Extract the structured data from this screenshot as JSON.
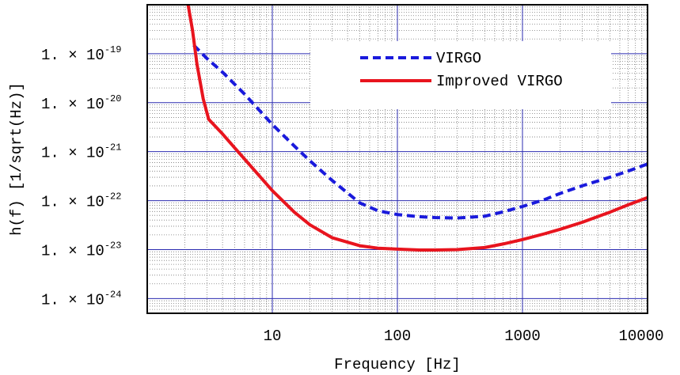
{
  "chart_data": {
    "type": "line",
    "xlabel": "Frequency [Hz]",
    "ylabel": "h(f) [1/sqrt(Hz)]",
    "xscale": "log",
    "yscale": "log",
    "xlim": [
      1,
      10000
    ],
    "ylim": [
      5e-25,
      1e-18
    ],
    "x_ticks": [
      {
        "value": 10,
        "label": "10"
      },
      {
        "value": 100,
        "label": "100"
      },
      {
        "value": 1000,
        "label": "1000"
      },
      {
        "value": 10000,
        "label": "10000"
      }
    ],
    "y_ticks": [
      {
        "value": 1e-24,
        "mantissa": "1.",
        "exp": "-24"
      },
      {
        "value": 1e-23,
        "mantissa": "1.",
        "exp": "-23"
      },
      {
        "value": 1e-22,
        "mantissa": "1.",
        "exp": "-22"
      },
      {
        "value": 1e-21,
        "mantissa": "1.",
        "exp": "-21"
      },
      {
        "value": 1e-20,
        "mantissa": "1.",
        "exp": "-20"
      },
      {
        "value": 1e-19,
        "mantissa": "1.",
        "exp": "-19"
      }
    ],
    "grid": true,
    "legend_position": "top-right",
    "series": [
      {
        "name": "VIRGO",
        "color": "#1a1adc",
        "style": "dashed",
        "x": [
          2.35,
          3,
          4,
          6,
          10,
          15,
          20,
          30,
          50,
          70,
          100,
          150,
          200,
          300,
          500,
          700,
          1000,
          1500,
          2000,
          3000,
          5000,
          7000,
          10000
        ],
        "y": [
          1.5e-19,
          8e-20,
          4.2e-20,
          1.5e-20,
          3.6e-21,
          1.3e-21,
          6.5e-22,
          2.6e-22,
          9e-23,
          6.2e-23,
          5.2e-23,
          4.7e-23,
          4.5e-23,
          4.4e-23,
          4.8e-23,
          5.9e-23,
          7.6e-23,
          1.05e-22,
          1.4e-22,
          2e-22,
          3e-22,
          4e-22,
          5.6e-22
        ]
      },
      {
        "name": "Improved VIRGO",
        "color": "#e8141e",
        "style": "solid",
        "x": [
          2.12,
          2.3,
          2.5,
          2.8,
          3.1,
          3.5,
          4,
          5,
          7,
          10,
          15,
          20,
          30,
          50,
          70,
          100,
          150,
          200,
          300,
          500,
          700,
          1000,
          1500,
          2000,
          3000,
          5000,
          7000,
          10000
        ],
        "y": [
          1e-18,
          3e-19,
          6e-20,
          1.2e-20,
          4.6e-21,
          3.3e-21,
          2.3e-21,
          1.2e-21,
          4.5e-22,
          1.6e-22,
          5.8e-23,
          3.2e-23,
          1.75e-23,
          1.2e-23,
          1.07e-23,
          1.02e-23,
          9.8e-24,
          9.8e-24,
          1e-23,
          1.1e-23,
          1.3e-23,
          1.6e-23,
          2.1e-23,
          2.6e-23,
          3.6e-23,
          5.8e-23,
          8.2e-23,
          1.15e-22
        ]
      }
    ],
    "background": "#ffffff",
    "grid_major_color": "#2b2bb0",
    "grid_minor_color": "#7a7a7a",
    "frame_color": "#000000"
  }
}
